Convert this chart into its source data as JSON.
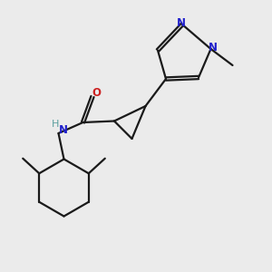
{
  "bg_color": "#ebebeb",
  "bond_color": "#1a1a1a",
  "N_color": "#2020cc",
  "O_color": "#cc2020",
  "H_color": "#5a9e9e",
  "figsize": [
    3.0,
    3.0
  ],
  "dpi": 100,
  "xlim": [
    0,
    10
  ],
  "ylim": [
    0,
    10
  ],
  "lw": 1.6,
  "fs": 8.5
}
